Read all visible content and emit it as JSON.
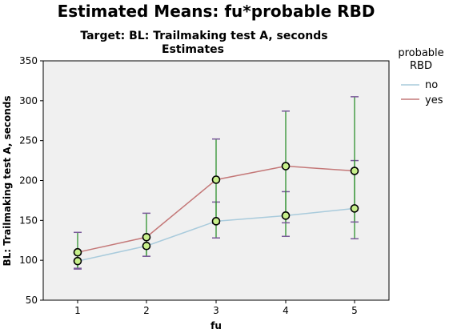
{
  "chart_data": {
    "type": "line",
    "title": "Estimated Means: fu*probable RBD",
    "subtitle": "Target: BL: Trailmaking test A, seconds",
    "subtitle2": "Estimates",
    "xlabel": "fu",
    "ylabel": "BL: Trailmaking test A, seconds",
    "x": [
      1,
      2,
      3,
      4,
      5
    ],
    "ylim": [
      50,
      350
    ],
    "yticks": [
      50,
      100,
      150,
      200,
      250,
      300,
      350
    ],
    "grid": false,
    "legend": {
      "title_line1": "probable",
      "title_line2": "RBD",
      "position": "right"
    },
    "series": [
      {
        "name": "no",
        "color": "#a9cbdc",
        "values": [
          99,
          118,
          149,
          156,
          165
        ],
        "error_low": [
          89,
          105,
          128,
          130,
          127
        ],
        "error_high": [
          110,
          130,
          173,
          186,
          225
        ]
      },
      {
        "name": "yes",
        "color": "#c47878",
        "values": [
          110,
          129,
          201,
          218,
          212
        ],
        "error_low": [
          90,
          105,
          146,
          147,
          148
        ],
        "error_high": [
          135,
          159,
          252,
          287,
          305
        ]
      }
    ],
    "plot_background": "#f0f0f0",
    "errorbar_color": "#1f8a1f",
    "errorbar_cap_color": "#7a5a9a",
    "marker_fill": "#c8f08c"
  }
}
